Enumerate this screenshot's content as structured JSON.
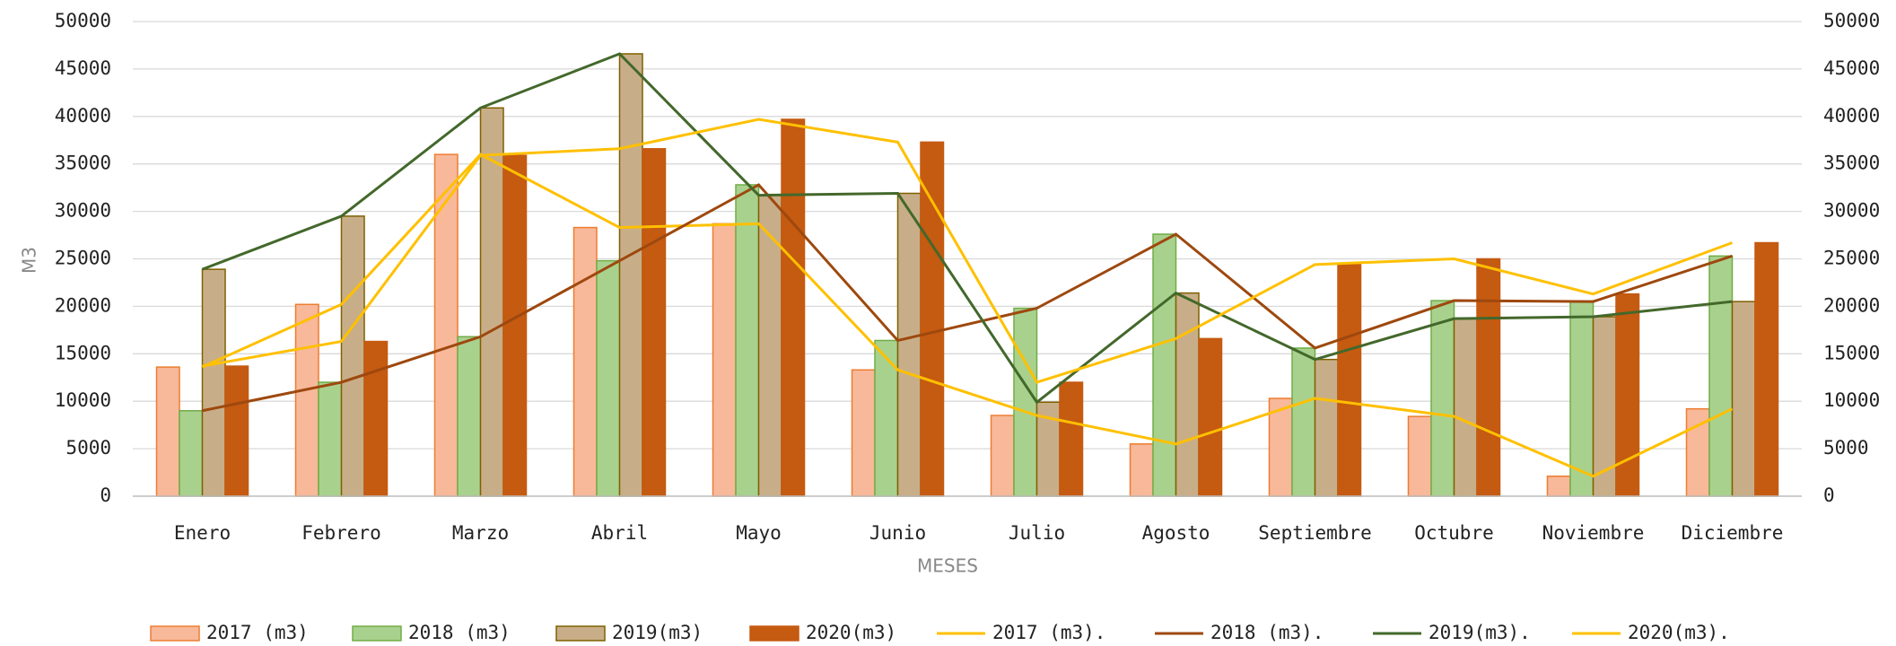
{
  "chart_data": {
    "type": "bar",
    "x_label": "MESES",
    "y_label": "M3",
    "categories": [
      "Enero",
      "Febrero",
      "Marzo",
      "Abril",
      "Mayo",
      "Junio",
      "Julio",
      "Agosto",
      "Septiembre",
      "Octubre",
      "Noviembre",
      "Diciembre"
    ],
    "ylim": [
      0,
      50000
    ],
    "yticks": [
      0,
      5000,
      10000,
      15000,
      20000,
      25000,
      30000,
      35000,
      40000,
      45000,
      50000
    ],
    "y2lim": [
      0,
      50000
    ],
    "y2ticks": [
      0,
      5000,
      10000,
      15000,
      20000,
      25000,
      30000,
      35000,
      40000,
      45000,
      50000
    ],
    "grid": true,
    "legend": "bottom",
    "series": [
      {
        "name": "2017 (m3)",
        "type": "bar",
        "color": "#f8b89a",
        "values": [
          13600,
          20200,
          36000,
          28300,
          28700,
          13300,
          8500,
          5500,
          10300,
          8400,
          2100,
          9200
        ]
      },
      {
        "name": "2018 (m3)",
        "type": "bar",
        "color": "#a9d18e",
        "values": [
          9000,
          12000,
          16800,
          24800,
          32800,
          16400,
          19800,
          27600,
          15600,
          20600,
          20500,
          25300
        ]
      },
      {
        "name": "2019(m3)",
        "type": "bar",
        "color": "#c8ae88",
        "values": [
          23900,
          29500,
          40900,
          46600,
          31700,
          31900,
          9900,
          21400,
          14400,
          18700,
          18900,
          20500
        ]
      },
      {
        "name": "2020(m3)",
        "type": "bar",
        "color": "#c55a11",
        "values": [
          13700,
          16300,
          35900,
          36600,
          39700,
          37300,
          12000,
          16600,
          24400,
          25000,
          21300,
          26700
        ]
      },
      {
        "name": "2017 (m3).",
        "type": "line",
        "axis": "y2",
        "color": "#ffc000",
        "values": [
          13600,
          20200,
          36000,
          28300,
          28700,
          13300,
          8500,
          5500,
          10300,
          8400,
          2100,
          9200
        ]
      },
      {
        "name": "2018 (m3).",
        "type": "line",
        "axis": "y2",
        "color": "#9e480e",
        "values": [
          9000,
          12000,
          16800,
          24800,
          32800,
          16400,
          19800,
          27600,
          15600,
          20600,
          20500,
          25300
        ]
      },
      {
        "name": "2019(m3).",
        "type": "line",
        "axis": "y2",
        "color": "#43682b",
        "values": [
          23900,
          29500,
          40900,
          46600,
          31700,
          31900,
          9900,
          21400,
          14400,
          18700,
          18900,
          20500
        ]
      },
      {
        "name": "2020(m3).",
        "type": "line",
        "axis": "y2",
        "color": "#ffc000",
        "values": [
          13700,
          16300,
          35900,
          36600,
          39700,
          37300,
          12000,
          16600,
          24400,
          25000,
          21300,
          26700
        ]
      }
    ]
  }
}
